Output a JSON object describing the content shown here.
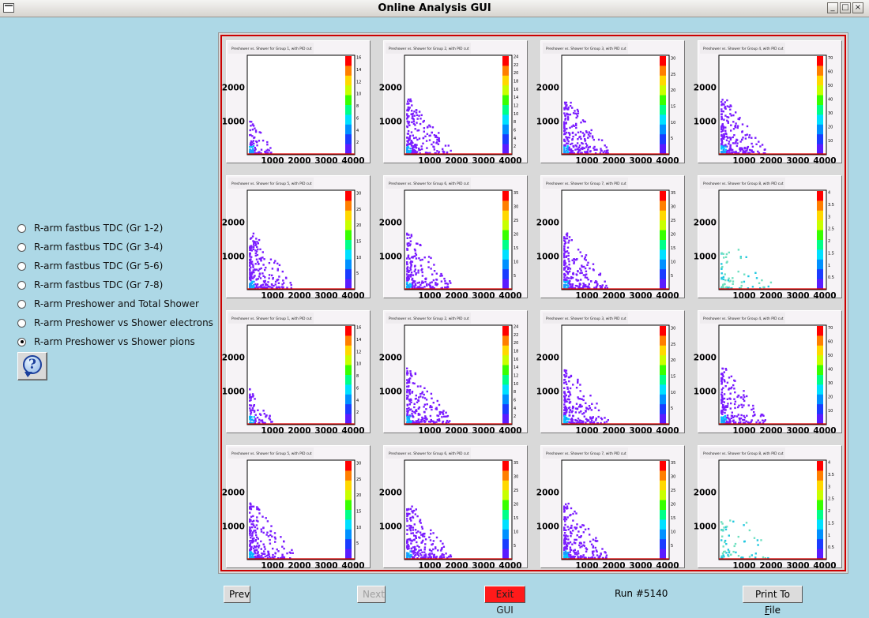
{
  "window": {
    "title": "Online Analysis GUI"
  },
  "options": [
    {
      "label": "R-arm fastbus TDC (Gr 1-2)",
      "selected": false
    },
    {
      "label": "R-arm fastbus TDC (Gr 3-4)",
      "selected": false
    },
    {
      "label": "R-arm fastbus TDC (Gr 5-6)",
      "selected": false
    },
    {
      "label": "R-arm fastbus TDC (Gr 7-8)",
      "selected": false
    },
    {
      "label": "R-arm Preshower and Total Shower",
      "selected": false
    },
    {
      "label": "R-arm Preshower vs Shower electrons",
      "selected": false
    },
    {
      "label": "R-arm Preshower vs Shower pions",
      "selected": true
    }
  ],
  "help": {
    "icon": "help-icon",
    "glyph": "?"
  },
  "plots": [
    {
      "title": "Preshower vs. Shower for Group 1, with PID cut",
      "zmax_ticks": [
        "2",
        "4",
        "6",
        "8",
        "10",
        "12",
        "14",
        "16"
      ],
      "mode": "a"
    },
    {
      "title": "Preshower vs. Shower for Group 2, with PID cut",
      "zmax_ticks": [
        "2",
        "4",
        "6",
        "8",
        "10",
        "12",
        "14",
        "16",
        "18",
        "20",
        "22",
        "24"
      ],
      "mode": "b"
    },
    {
      "title": "Preshower vs. Shower for Group 3, with PID cut",
      "zmax_ticks": [
        "5",
        "10",
        "15",
        "20",
        "25",
        "30"
      ],
      "mode": "b"
    },
    {
      "title": "Preshower vs. Shower for Group 4, with PID cut",
      "zmax_ticks": [
        "10",
        "20",
        "30",
        "40",
        "50",
        "60",
        "70"
      ],
      "mode": "b"
    },
    {
      "title": "Preshower vs. Shower for Group 5, with PID cut",
      "zmax_ticks": [
        "5",
        "10",
        "15",
        "20",
        "25",
        "30"
      ],
      "mode": "c"
    },
    {
      "title": "Preshower vs. Shower for Group 6, with PID cut",
      "zmax_ticks": [
        "5",
        "10",
        "15",
        "20",
        "25",
        "30",
        "35"
      ],
      "mode": "c"
    },
    {
      "title": "Preshower vs. Shower for Group 7, with PID cut",
      "zmax_ticks": [
        "5",
        "10",
        "15",
        "20",
        "25",
        "30",
        "35"
      ],
      "mode": "c"
    },
    {
      "title": "Preshower vs. Shower for Group 8, with PID cut",
      "zmax_ticks": [
        "0.5",
        "1",
        "1.5",
        "2",
        "2.5",
        "3",
        "3.5",
        "4"
      ],
      "mode": "d"
    },
    {
      "title": "Preshower vs. Shower for Group 1, with PID cut",
      "zmax_ticks": [
        "2",
        "4",
        "6",
        "8",
        "10",
        "12",
        "14",
        "16"
      ],
      "mode": "a"
    },
    {
      "title": "Preshower vs. Shower for Group 2, with PID cut",
      "zmax_ticks": [
        "2",
        "4",
        "6",
        "8",
        "10",
        "12",
        "14",
        "16",
        "18",
        "20",
        "22",
        "24"
      ],
      "mode": "b"
    },
    {
      "title": "Preshower vs. Shower for Group 3, with PID cut",
      "zmax_ticks": [
        "5",
        "10",
        "15",
        "20",
        "25",
        "30"
      ],
      "mode": "b"
    },
    {
      "title": "Preshower vs. Shower for Group 4, with PID cut",
      "zmax_ticks": [
        "10",
        "20",
        "30",
        "40",
        "50",
        "60",
        "70"
      ],
      "mode": "b"
    },
    {
      "title": "Preshower vs. Shower for Group 5, with PID cut",
      "zmax_ticks": [
        "5",
        "10",
        "15",
        "20",
        "25",
        "30"
      ],
      "mode": "c"
    },
    {
      "title": "Preshower vs. Shower for Group 6, with PID cut",
      "zmax_ticks": [
        "5",
        "10",
        "15",
        "20",
        "25",
        "30",
        "35"
      ],
      "mode": "c"
    },
    {
      "title": "Preshower vs. Shower for Group 7, with PID cut",
      "zmax_ticks": [
        "5",
        "10",
        "15",
        "20",
        "25",
        "30",
        "35"
      ],
      "mode": "c"
    },
    {
      "title": "Preshower vs. Shower for Group 8, with PID cut",
      "zmax_ticks": [
        "0.5",
        "1",
        "1.5",
        "2",
        "2.5",
        "3",
        "3.5",
        "4"
      ],
      "mode": "d"
    }
  ],
  "axes": {
    "x_ticks": [
      "1000",
      "2000",
      "3000",
      "4000"
    ],
    "y_ticks": [
      "1000",
      "2000"
    ]
  },
  "buttons": {
    "prev": "Prev",
    "next": "Next",
    "exit": "Exit GUI",
    "print_prefix": "Print To ",
    "print_hotkey": "F",
    "print_suffix": "ile"
  },
  "status": {
    "run": "Run #5140"
  },
  "colors": {
    "background": "#add8e6",
    "canvas_border": "#cc0000",
    "exit_button": "#ff1a1a",
    "plot_dots": "#7a1cff"
  }
}
